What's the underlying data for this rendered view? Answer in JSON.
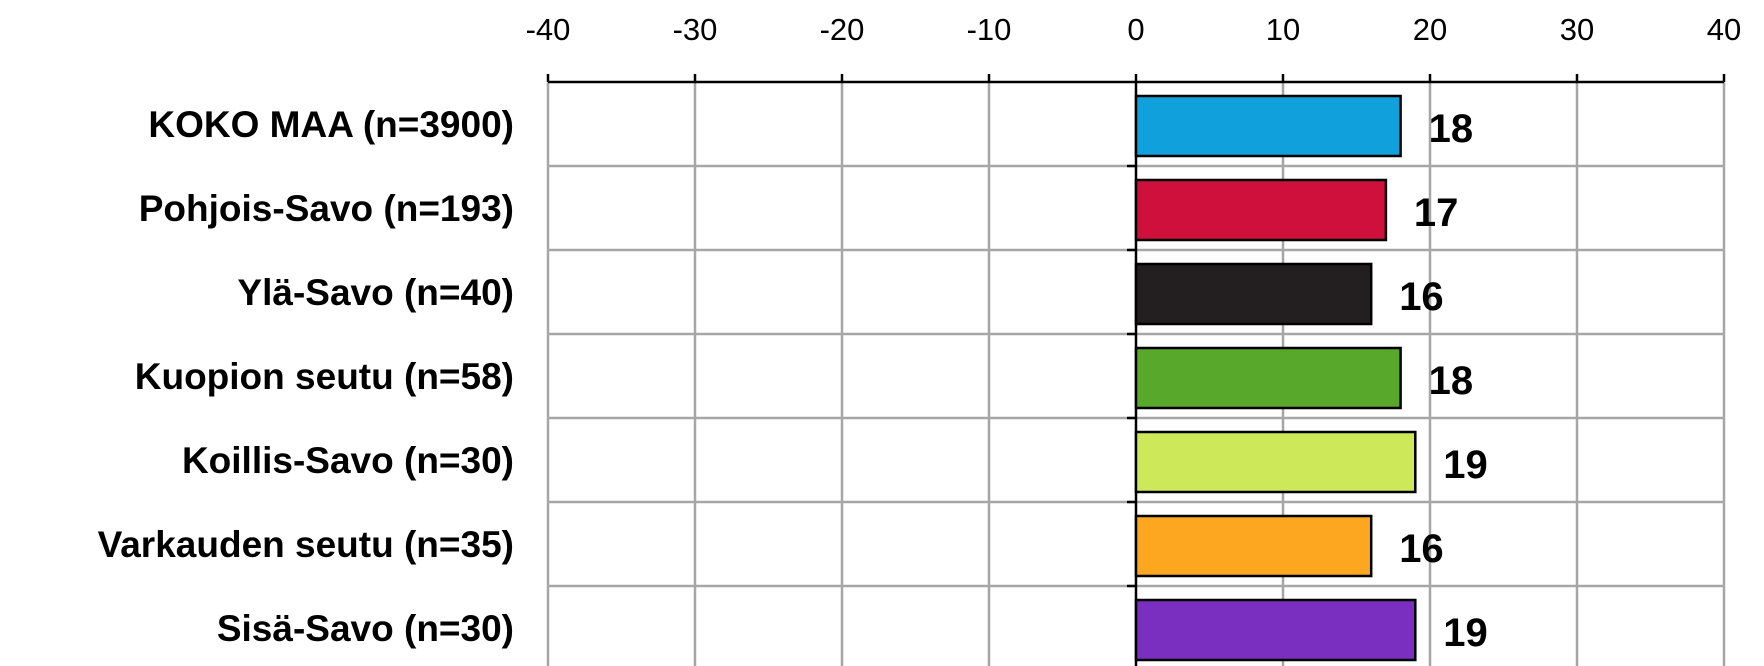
{
  "chart_data": {
    "type": "bar",
    "orientation": "horizontal",
    "categories": [
      "KOKO MAA (n=3900)",
      "Pohjois-Savo (n=193)",
      "Ylä-Savo (n=40)",
      "Kuopion seutu (n=58)",
      "Koillis-Savo (n=30)",
      "Varkauden seutu (n=35)",
      "Sisä-Savo (n=30)"
    ],
    "values": [
      18,
      17,
      16,
      18,
      19,
      16,
      19
    ],
    "colors": [
      "#10a1dc",
      "#d0103c",
      "#231f20",
      "#58a82c",
      "#cde859",
      "#fda620",
      "#7b2fc1"
    ],
    "xlim": [
      -40,
      40
    ],
    "xticks": [
      -40,
      -30,
      -20,
      -10,
      0,
      10,
      20,
      30,
      40
    ],
    "tick_labels": [
      "-40",
      "-30",
      "-20",
      "-10",
      "0",
      "10",
      "20",
      "30",
      "40"
    ],
    "data_labels": [
      "18",
      "17",
      "16",
      "18",
      "19",
      "16",
      "19"
    ],
    "x_axis_position": "top",
    "grid": true,
    "legend": "none"
  }
}
